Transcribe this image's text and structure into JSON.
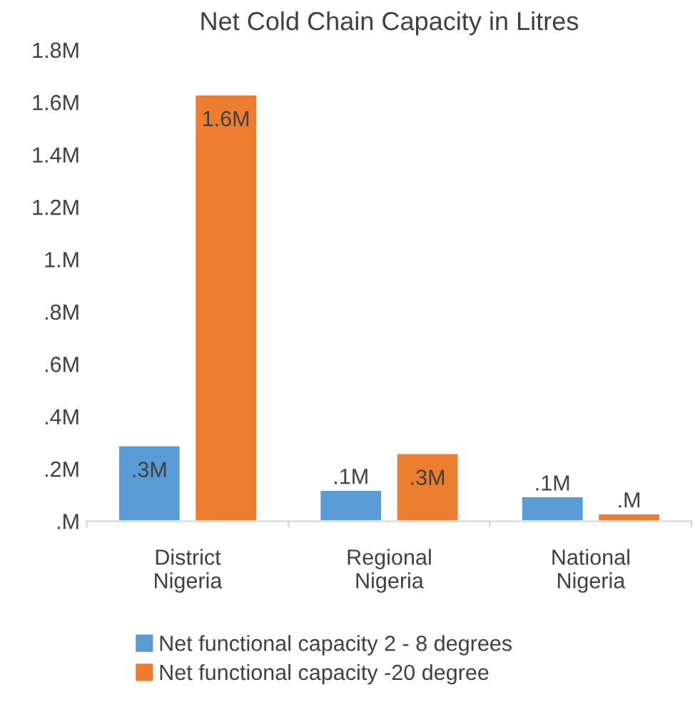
{
  "chart_data": {
    "type": "bar",
    "title": "Net Cold Chain Capacity in Litres",
    "categories": [
      "District\nNigeria",
      "Regional\nNigeria",
      "National\nNigeria"
    ],
    "series": [
      {
        "name": "Net functional capacity 2 - 8 degrees",
        "color": "#5b9bd5",
        "values": [
          0.29,
          0.12,
          0.095
        ],
        "value_labels": [
          ".3M",
          ".1M",
          ".1M"
        ]
      },
      {
        "name": "Net functional capacity -20 degree",
        "color": "#ed7d31",
        "values": [
          1.63,
          0.26,
          0.03
        ],
        "value_labels": [
          "1.6M",
          ".3M",
          ".M"
        ]
      }
    ],
    "ylim": [
      0,
      1.8
    ],
    "yticks": [
      {
        "value": 0,
        "label": ".M"
      },
      {
        "value": 0.2,
        "label": ".2M"
      },
      {
        "value": 0.4,
        "label": ".4M"
      },
      {
        "value": 0.6,
        "label": ".6M"
      },
      {
        "value": 0.8,
        "label": ".8M"
      },
      {
        "value": 1.0,
        "label": "1.M"
      },
      {
        "value": 1.2,
        "label": "1.2M"
      },
      {
        "value": 1.4,
        "label": "1.4M"
      },
      {
        "value": 1.6,
        "label": "1.6M"
      },
      {
        "value": 1.8,
        "label": "1.8M"
      }
    ],
    "grid": false,
    "legend": "bottom left"
  }
}
